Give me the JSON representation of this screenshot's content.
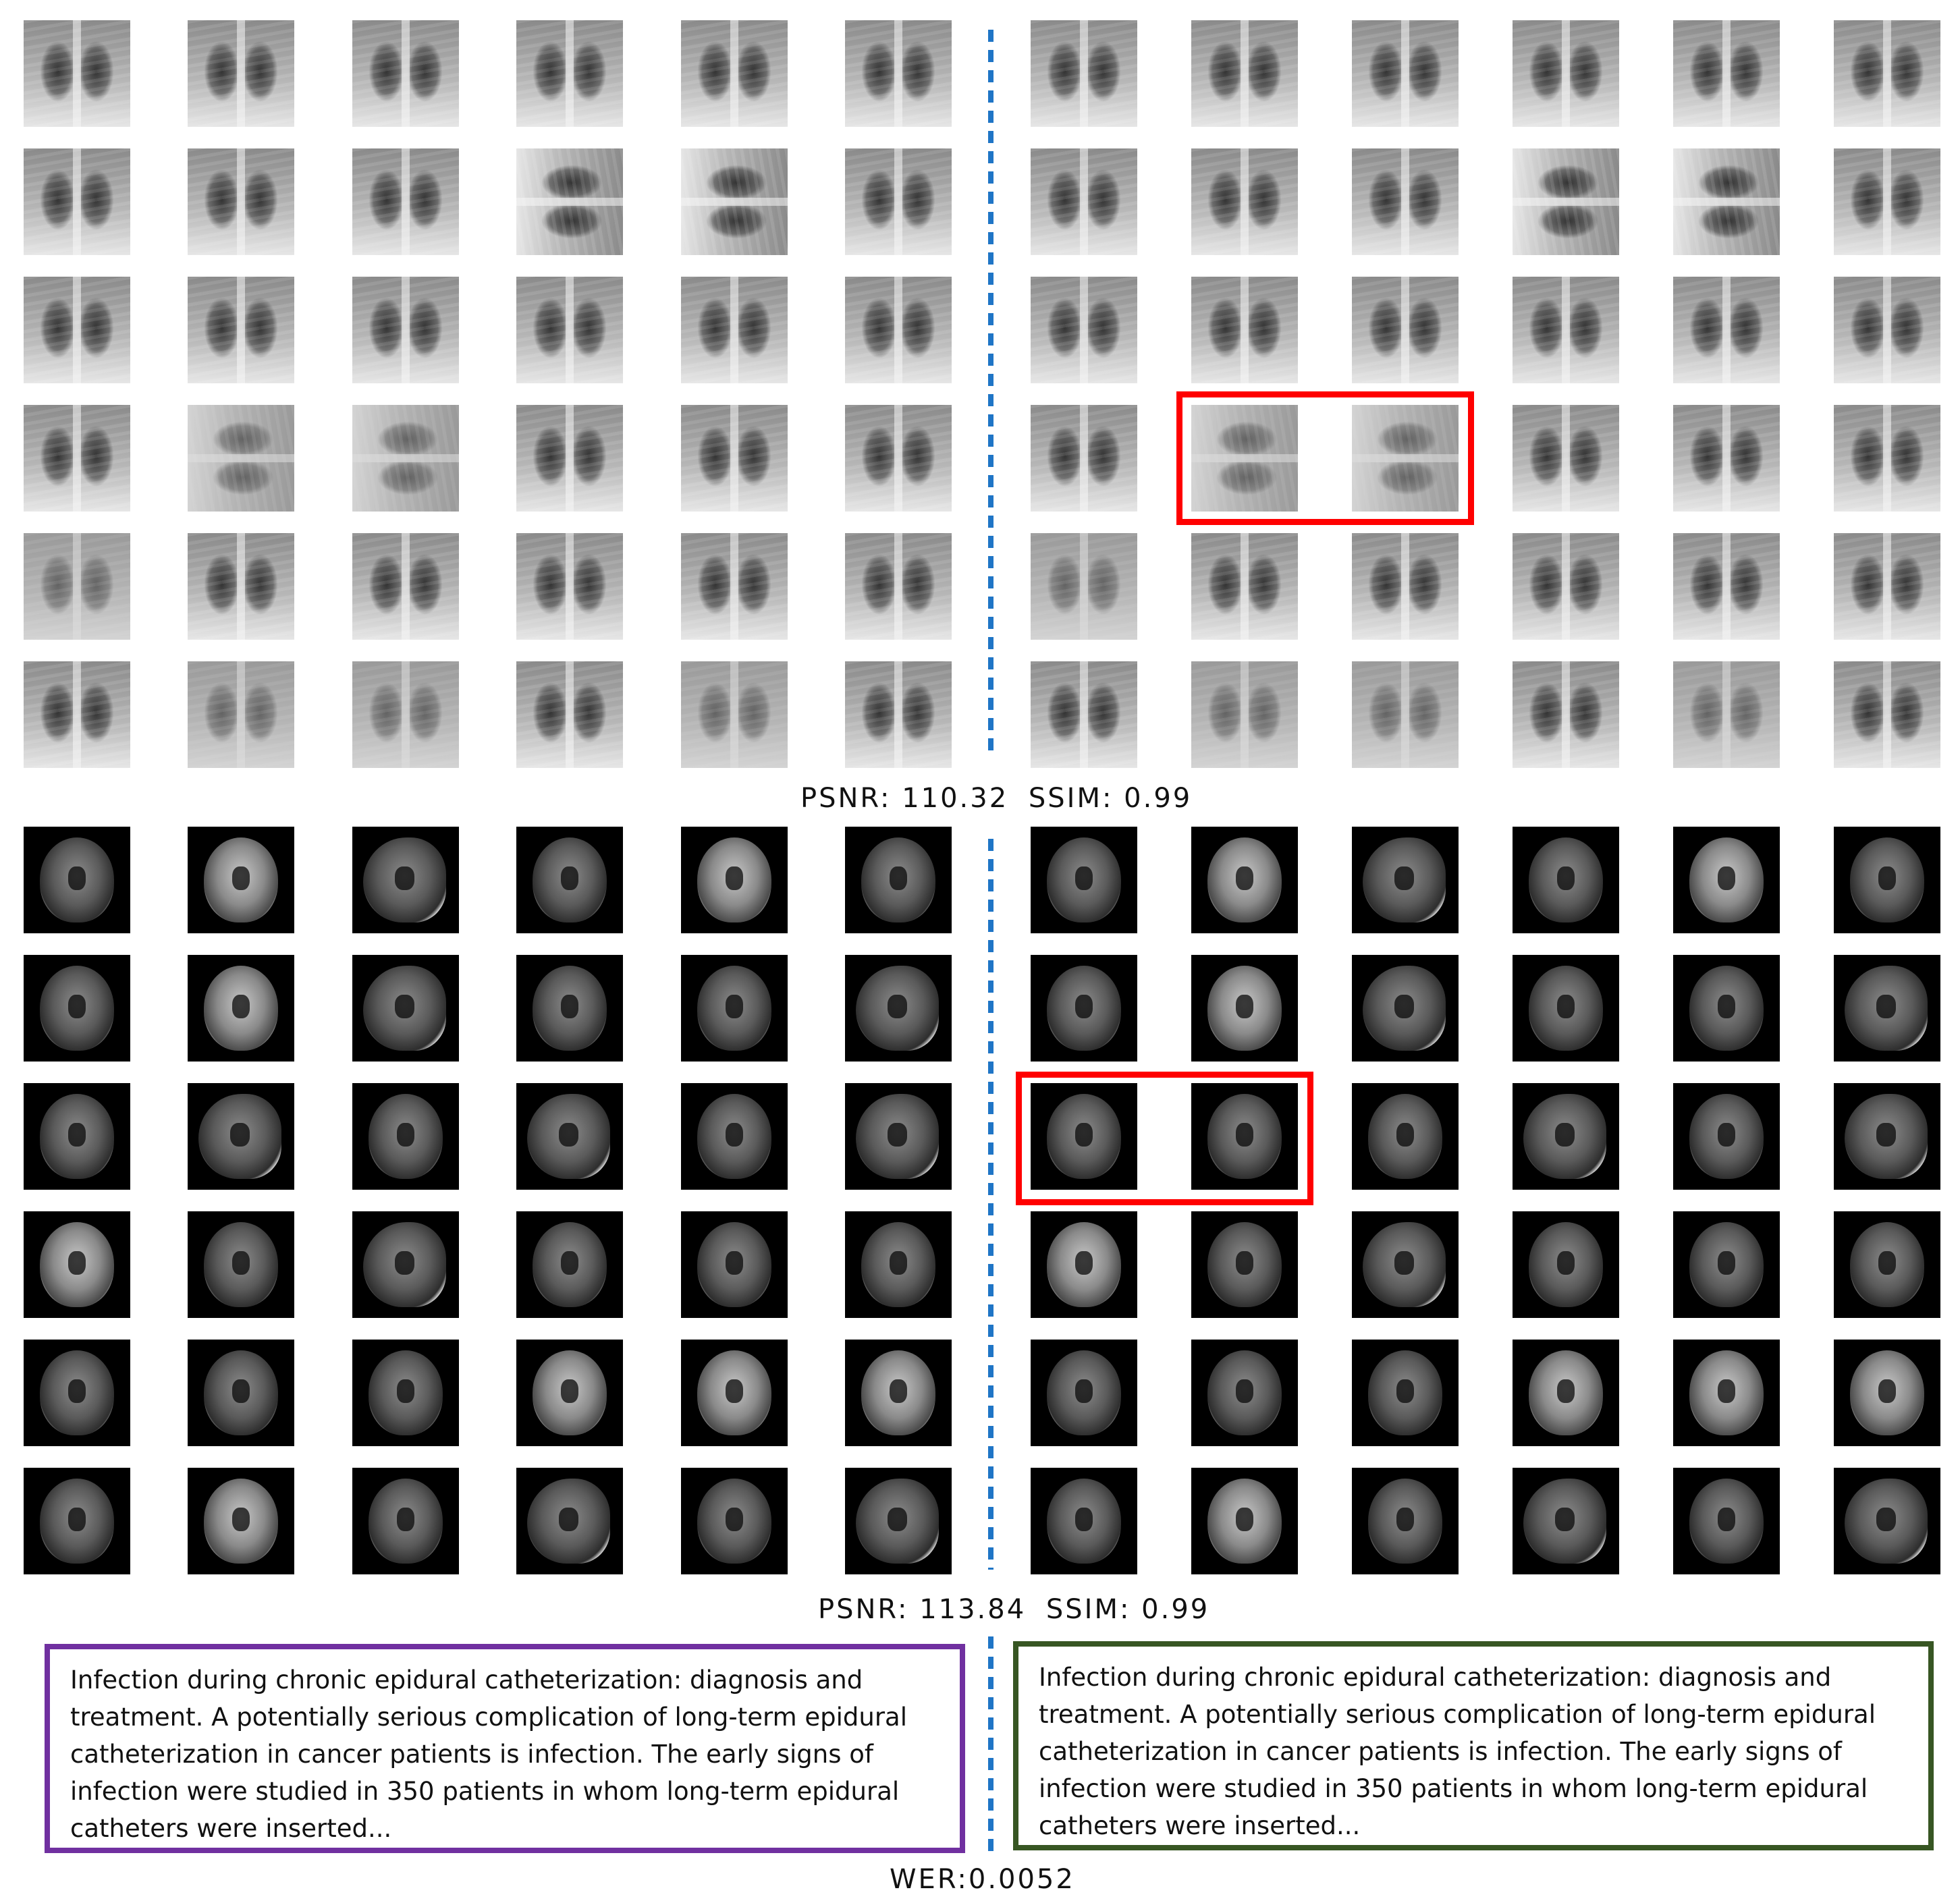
{
  "xray_section": {
    "metric_psnr": "PSNR: 110.32",
    "metric_ssim": "SSIM: 0.99"
  },
  "mri_section": {
    "metric_psnr": "PSNR: 113.84",
    "metric_ssim": "SSIM: 0.99"
  },
  "text_section": {
    "original_text": "Infection during chronic epidural catheterization: diagnosis and treatment. A potentially serious complication of long-term epidural catheterization in cancer patients is infection. The early signs of infection were studied in 350 patients in whom long-term epidural catheters were inserted...",
    "recovered_text": "Infection during chronic epidural catheterization: diagnosis and treatment. A potentially serious complication of long-term epidural catheterization in cancer patients is infection. The early signs of infection were studied in 350 patients in whom long-term epidural catheters were inserted...",
    "metric_wer": "WER:0.0052"
  },
  "colors": {
    "divider": "#1f75c6",
    "highlight": "#ff0000",
    "original_box_border": "#7030a0",
    "recovered_box_border": "#375623"
  }
}
